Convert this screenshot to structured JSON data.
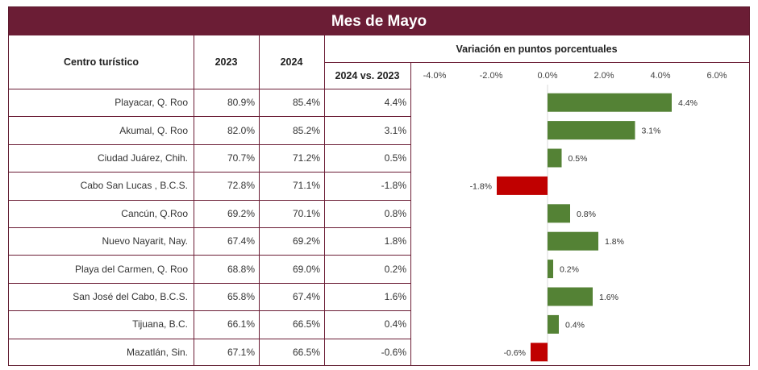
{
  "title": "Mes de Mayo",
  "headers": {
    "center": "Centro turístico",
    "y2023": "2023",
    "y2024": "2024",
    "variation": "Variación en puntos porcentuales",
    "comparison": "2024 vs. 2023"
  },
  "rows": [
    {
      "name": "Playacar, Q. Roo",
      "v2023": "80.9%",
      "v2024": "85.4%",
      "diff": "4.4%"
    },
    {
      "name": "Akumal, Q. Roo",
      "v2023": "82.0%",
      "v2024": "85.2%",
      "diff": "3.1%"
    },
    {
      "name": "Ciudad Juárez, Chih.",
      "v2023": "70.7%",
      "v2024": "71.2%",
      "diff": "0.5%"
    },
    {
      "name": "Cabo San Lucas , B.C.S.",
      "v2023": "72.8%",
      "v2024": "71.1%",
      "diff": "-1.8%"
    },
    {
      "name": "Cancún, Q.Roo",
      "v2023": "69.2%",
      "v2024": "70.1%",
      "diff": "0.8%"
    },
    {
      "name": "Nuevo Nayarit, Nay.",
      "v2023": "67.4%",
      "v2024": "69.2%",
      "diff": "1.8%"
    },
    {
      "name": "Playa del Carmen, Q. Roo",
      "v2023": "68.8%",
      "v2024": "69.0%",
      "diff": "0.2%"
    },
    {
      "name": "San José del Cabo, B.C.S.",
      "v2023": "65.8%",
      "v2024": "67.4%",
      "diff": "1.6%"
    },
    {
      "name": "Tijuana, B.C.",
      "v2023": "66.1%",
      "v2024": "66.5%",
      "diff": "0.4%"
    },
    {
      "name": "Mazatlán, Sin.",
      "v2023": "67.1%",
      "v2024": "66.5%",
      "diff": "-0.6%"
    }
  ],
  "colors": {
    "header_bg": "#6b1d35",
    "border": "#6b1d35",
    "positive": "#548235",
    "negative": "#c00000"
  },
  "chart_data": {
    "type": "bar",
    "orientation": "horizontal",
    "categories": [
      "Playacar, Q. Roo",
      "Akumal, Q. Roo",
      "Ciudad Juárez, Chih.",
      "Cabo San Lucas , B.C.S.",
      "Cancún, Q.Roo",
      "Nuevo Nayarit, Nay.",
      "Playa del Carmen, Q. Roo",
      "San José del Cabo, B.C.S.",
      "Tijuana, B.C.",
      "Mazatlán, Sin."
    ],
    "values": [
      4.4,
      3.1,
      0.5,
      -1.8,
      0.8,
      1.8,
      0.2,
      1.6,
      0.4,
      -0.6
    ],
    "value_labels": [
      "4.4%",
      "3.1%",
      "0.5%",
      "-1.8%",
      "0.8%",
      "1.8%",
      "0.2%",
      "1.6%",
      "0.4%",
      "-0.6%"
    ],
    "xlim": [
      -4.0,
      6.0
    ],
    "ticks": [
      -4.0,
      -2.0,
      0.0,
      2.0,
      4.0,
      6.0
    ],
    "tick_labels": [
      "-4.0%",
      "-2.0%",
      "0.0%",
      "2.0%",
      "4.0%",
      "6.0%"
    ],
    "title": "Variación en puntos porcentuales",
    "grid": false
  }
}
